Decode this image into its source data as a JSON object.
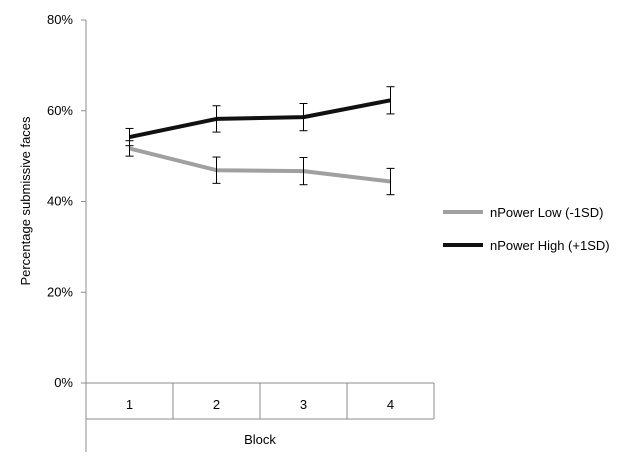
{
  "chart_data": {
    "type": "line",
    "title": "",
    "xlabel": "Block",
    "ylabel": "Percentage submissive faces",
    "categories": [
      "1",
      "2",
      "3",
      "4"
    ],
    "ylim": [
      0,
      80
    ],
    "yticks": [
      0,
      20,
      40,
      60,
      80
    ],
    "ytick_labels": [
      "0%",
      "20%",
      "40%",
      "60%",
      "80%"
    ],
    "grid": false,
    "legend_position": "right",
    "series": [
      {
        "name": "nPower Low (-1SD)",
        "color": "#a0a0a0",
        "values": [
          51.7,
          46.9,
          46.7,
          44.4
        ],
        "error": [
          1.7,
          2.9,
          3.0,
          2.9
        ]
      },
      {
        "name": "nPower High (+1SD)",
        "color": "#111111",
        "values": [
          54.2,
          58.2,
          58.6,
          62.3
        ],
        "error": [
          1.9,
          2.9,
          3.0,
          3.0
        ]
      }
    ]
  }
}
